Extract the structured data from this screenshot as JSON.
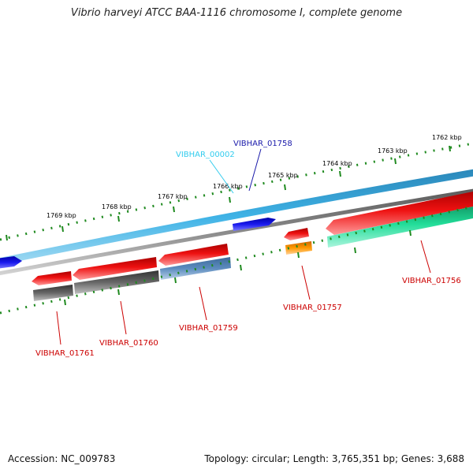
{
  "title": "Vibrio harveyi ATCC BAA-1116 chromosome I, complete genome",
  "footer": {
    "accession": "Accession: NC_009783",
    "summary": "Topology: circular; Length: 3,765,351 bp; Genes: 3,688"
  },
  "colors": {
    "forward_backbone": "#33a6d6",
    "reverse_backbone": "#888888",
    "cds": "#ee0000",
    "gene_forward": "#1a1aee",
    "gene_reverse_teal": "#22dd99",
    "gene_orange": "#ff8800",
    "tick": "#1f8a1f"
  },
  "scale_labels": [
    "1762 kbp",
    "1763 kbp",
    "1764 kbp",
    "1765 kbp",
    "1766 kbp",
    "1767 kbp",
    "1768 kbp",
    "1769 kbp"
  ],
  "gene_labels": [
    {
      "text": "VIBHAR_00002",
      "color": "#33ccee"
    },
    {
      "text": "VIBHAR_01758",
      "color": "#1a1aaa"
    },
    {
      "text": "VIBHAR_01756",
      "color": "#cc0000"
    },
    {
      "text": "VIBHAR_01757",
      "color": "#cc0000"
    },
    {
      "text": "VIBHAR_01759",
      "color": "#cc0000"
    },
    {
      "text": "VIBHAR_01760",
      "color": "#cc0000"
    },
    {
      "text": "VIBHAR_01761",
      "color": "#cc0000"
    }
  ]
}
